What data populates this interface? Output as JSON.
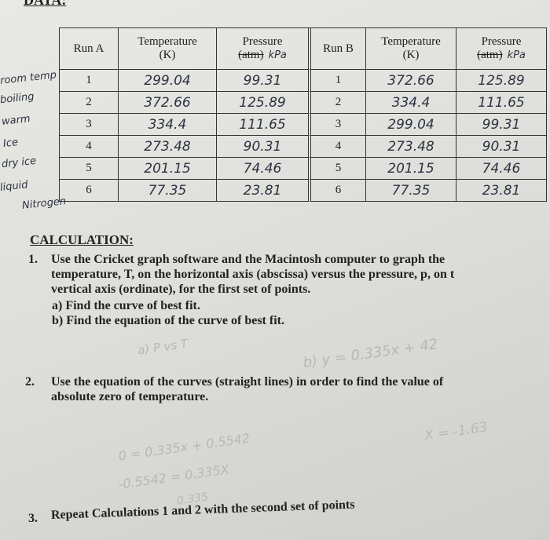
{
  "header": {
    "title": "DATA:"
  },
  "table": {
    "headers": [
      {
        "label": "Run A"
      },
      {
        "label": "Temperature",
        "unit": "(K)"
      },
      {
        "label": "Pressure",
        "unit": "(atm)",
        "note": "kPa"
      },
      {
        "label": "Run B"
      },
      {
        "label": "Temperature",
        "unit": "(K)"
      },
      {
        "label": "Pressure",
        "unit": "(atm)",
        "note": "kPa"
      }
    ],
    "rows": [
      [
        "1",
        "299.04",
        "99.31",
        "1",
        "372.66",
        "125.89"
      ],
      [
        "2",
        "372.66",
        "125.89",
        "2",
        "334.4",
        "111.65"
      ],
      [
        "3",
        "334.4",
        "111.65",
        "3",
        "299.04",
        "99.31"
      ],
      [
        "4",
        "273.48",
        "90.31",
        "4",
        "273.48",
        "90.31"
      ],
      [
        "5",
        "201.15",
        "74.46",
        "5",
        "201.15",
        "74.46"
      ],
      [
        "6",
        "77.35",
        "23.81",
        "6",
        "77.35",
        "23.81"
      ]
    ]
  },
  "side_notes": [
    "room temp",
    "boiling",
    "warm",
    "Ice",
    "dry ice",
    "liquid",
    "Nitrogen"
  ],
  "calculation": {
    "title": "CALCULATION:",
    "items": [
      {
        "number": "1.",
        "lines": [
          "Use the Cricket graph software and the Macintosh computer to graph the",
          "temperature, T, on the horizontal axis (abscissa) versus the pressure, p, on t",
          "vertical axis (ordinate), for the first set of points."
        ],
        "subitems": [
          "a) Find the curve of best fit.",
          "b) Find the equation of the curve of best fit."
        ]
      },
      {
        "number": "2.",
        "lines": [
          "Use the equation of the curves (straight lines) in order to find the value of",
          "absolute zero of temperature."
        ]
      },
      {
        "number": "3.",
        "lines": [
          "Repeat Calculations 1 and 2 with the second set of points"
        ]
      }
    ]
  },
  "notes": [
    "a) P vs T",
    "b) y = 0.335x + 42",
    "0 = 0.335x + 0.5542",
    "X = -1.63",
    "-0.5542 = 0.335X",
    "0.335"
  ]
}
